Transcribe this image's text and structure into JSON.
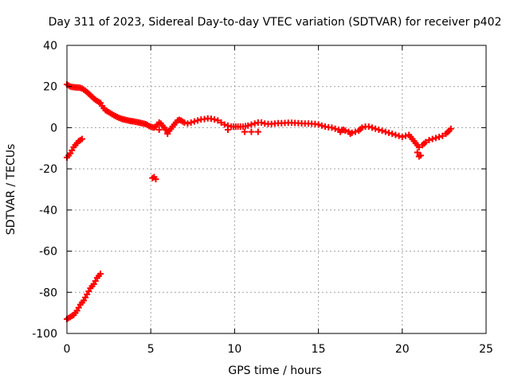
{
  "chart_data": {
    "type": "scatter",
    "title": "Day 311 of 2023, Sidereal Day-to-day VTEC variation (SDTVAR) for receiver p402",
    "xlabel": "GPS time / hours",
    "ylabel": "SDTVAR / TECUs",
    "xlim": [
      0,
      25
    ],
    "ylim": [
      -100,
      40
    ],
    "xticks": [
      0,
      5,
      10,
      15,
      20,
      25
    ],
    "yticks": [
      -100,
      -80,
      -60,
      -40,
      -20,
      0,
      20,
      40
    ],
    "grid": true,
    "marker": "plus",
    "series_color": "#ff0000",
    "series": [
      {
        "name": "main-trace",
        "points": [
          [
            0.0,
            21
          ],
          [
            0.1,
            20.5
          ],
          [
            0.2,
            20
          ],
          [
            0.3,
            19.8
          ],
          [
            0.4,
            19.7
          ],
          [
            0.5,
            19.6
          ],
          [
            0.6,
            19.5
          ],
          [
            0.7,
            19.5
          ],
          [
            0.8,
            19.3
          ],
          [
            0.9,
            19
          ],
          [
            1.0,
            18.5
          ],
          [
            1.1,
            18
          ],
          [
            1.2,
            17.3
          ],
          [
            1.3,
            16.5
          ],
          [
            1.4,
            15.8
          ],
          [
            1.5,
            15
          ],
          [
            1.6,
            14.2
          ],
          [
            1.7,
            13.5
          ],
          [
            1.8,
            13
          ],
          [
            1.9,
            12.5
          ],
          [
            2.0,
            12
          ],
          [
            2.1,
            10.5
          ],
          [
            2.2,
            9.5
          ],
          [
            2.3,
            8.5
          ],
          [
            2.4,
            8
          ],
          [
            2.5,
            7.5
          ],
          [
            2.6,
            7
          ],
          [
            2.7,
            6.5
          ],
          [
            2.8,
            6
          ],
          [
            2.9,
            5.6
          ],
          [
            3.0,
            5.2
          ],
          [
            3.1,
            4.8
          ],
          [
            3.2,
            4.5
          ],
          [
            3.3,
            4.2
          ],
          [
            3.4,
            4
          ],
          [
            3.5,
            3.8
          ],
          [
            3.6,
            3.6
          ],
          [
            3.7,
            3.4
          ],
          [
            3.8,
            3.2
          ],
          [
            3.9,
            3.1
          ],
          [
            4.0,
            3
          ],
          [
            4.1,
            2.8
          ],
          [
            4.2,
            2.7
          ],
          [
            4.3,
            2.5
          ],
          [
            4.4,
            2.3
          ],
          [
            4.5,
            2.1
          ],
          [
            4.6,
            1.9
          ],
          [
            4.7,
            1.7
          ],
          [
            4.8,
            1.3
          ],
          [
            4.9,
            0.8
          ],
          [
            5.0,
            0.5
          ],
          [
            5.1,
            0.2
          ],
          [
            5.2,
            0
          ],
          [
            5.3,
            0.5
          ],
          [
            5.4,
            1.5
          ],
          [
            5.5,
            2.5
          ],
          [
            5.6,
            2
          ],
          [
            5.7,
            1
          ],
          [
            5.8,
            0
          ],
          [
            5.9,
            -1
          ],
          [
            6.0,
            -2
          ],
          [
            6.1,
            -1.5
          ],
          [
            6.2,
            -0.5
          ],
          [
            6.3,
            0.5
          ],
          [
            6.4,
            1.5
          ],
          [
            6.5,
            2.5
          ],
          [
            6.6,
            3.5
          ],
          [
            6.7,
            3.8
          ],
          [
            6.8,
            3.5
          ],
          [
            6.9,
            3
          ],
          [
            7.0,
            2.5
          ],
          [
            7.2,
            2
          ],
          [
            7.4,
            2.5
          ],
          [
            7.6,
            3
          ],
          [
            7.8,
            3.5
          ],
          [
            8.0,
            4
          ],
          [
            8.2,
            4.2
          ],
          [
            8.4,
            4.5
          ],
          [
            8.6,
            4.3
          ],
          [
            8.8,
            4
          ],
          [
            9.0,
            3.5
          ],
          [
            9.2,
            2.5
          ],
          [
            9.4,
            1.5
          ],
          [
            9.6,
            1
          ],
          [
            9.8,
            0.5
          ],
          [
            10.2,
            0.5
          ],
          [
            10.5,
            0.5
          ],
          [
            10.8,
            1
          ],
          [
            11.0,
            1.5
          ],
          [
            11.2,
            2
          ],
          [
            11.4,
            2.5
          ],
          [
            11.6,
            2.5
          ],
          [
            11.8,
            2
          ],
          [
            12.0,
            1.8
          ],
          [
            12.2,
            1.8
          ],
          [
            12.4,
            2
          ],
          [
            12.6,
            2.2
          ],
          [
            12.8,
            2.2
          ],
          [
            13.0,
            2.3
          ],
          [
            13.2,
            2.4
          ],
          [
            13.4,
            2.4
          ],
          [
            13.6,
            2.3
          ],
          [
            13.8,
            2.2
          ],
          [
            14.0,
            2.1
          ],
          [
            14.2,
            2
          ],
          [
            14.4,
            2
          ],
          [
            14.6,
            1.9
          ],
          [
            14.8,
            1.8
          ],
          [
            15.0,
            1.5
          ],
          [
            15.2,
            1
          ],
          [
            15.4,
            0.5
          ],
          [
            15.6,
            0.2
          ],
          [
            15.8,
            0
          ],
          [
            16.0,
            -0.5
          ],
          [
            16.2,
            -1
          ],
          [
            16.4,
            -1.2
          ],
          [
            16.6,
            -1.5
          ],
          [
            16.8,
            -2
          ],
          [
            17.0,
            -2.5
          ],
          [
            17.2,
            -2
          ],
          [
            17.4,
            -1.5
          ],
          [
            17.6,
            0
          ],
          [
            17.8,
            0.5
          ],
          [
            18.0,
            0.5
          ],
          [
            18.2,
            0
          ],
          [
            18.4,
            -0.5
          ],
          [
            18.6,
            -1
          ],
          [
            18.8,
            -1.5
          ],
          [
            19.0,
            -2
          ],
          [
            19.2,
            -2.5
          ],
          [
            19.4,
            -3
          ],
          [
            19.6,
            -3.5
          ],
          [
            19.8,
            -4
          ],
          [
            20.0,
            -4.5
          ],
          [
            20.2,
            -4
          ],
          [
            20.4,
            -3.5
          ],
          [
            20.6,
            -5.5
          ],
          [
            20.8,
            -7.5
          ],
          [
            21.0,
            -9.5
          ],
          [
            21.2,
            -8.5
          ],
          [
            21.4,
            -7
          ],
          [
            21.6,
            -6
          ],
          [
            21.8,
            -5.5
          ],
          [
            22.0,
            -5
          ],
          [
            22.2,
            -4.5
          ],
          [
            22.4,
            -4
          ],
          [
            22.6,
            -3
          ],
          [
            22.8,
            -1.5
          ],
          [
            22.9,
            -0.5
          ]
        ]
      },
      {
        "name": "short-segment",
        "points": [
          [
            0.0,
            -14.5
          ],
          [
            0.1,
            -13.5
          ],
          [
            0.2,
            -12.5
          ],
          [
            0.3,
            -11
          ],
          [
            0.4,
            -9.5
          ],
          [
            0.5,
            -8.5
          ],
          [
            0.6,
            -7.5
          ],
          [
            0.7,
            -6.5
          ],
          [
            0.8,
            -6
          ],
          [
            0.9,
            -5.5
          ]
        ]
      },
      {
        "name": "isolated-cluster",
        "points": [
          [
            5.1,
            -24.5
          ],
          [
            5.2,
            -24
          ],
          [
            5.3,
            -25
          ]
        ]
      },
      {
        "name": "low-segment",
        "points": [
          [
            0.0,
            -93
          ],
          [
            0.1,
            -92.5
          ],
          [
            0.2,
            -92
          ],
          [
            0.3,
            -91.5
          ],
          [
            0.4,
            -91
          ],
          [
            0.5,
            -90
          ],
          [
            0.6,
            -89
          ],
          [
            0.7,
            -87.5
          ],
          [
            0.8,
            -86
          ],
          [
            0.9,
            -85
          ],
          [
            1.0,
            -84
          ],
          [
            1.1,
            -82.5
          ],
          [
            1.2,
            -81
          ],
          [
            1.3,
            -79.5
          ],
          [
            1.4,
            -78
          ],
          [
            1.5,
            -77
          ],
          [
            1.6,
            -76
          ],
          [
            1.7,
            -74.5
          ],
          [
            1.8,
            -73
          ],
          [
            1.9,
            -72
          ],
          [
            2.0,
            -71
          ]
        ]
      },
      {
        "name": "trace-spikes",
        "points": [
          [
            5.5,
            -1
          ],
          [
            6.0,
            -3
          ],
          [
            9.6,
            -1
          ],
          [
            10.6,
            -2
          ],
          [
            11.0,
            -2
          ],
          [
            11.4,
            -2
          ],
          [
            16.3,
            -2
          ],
          [
            16.5,
            -1
          ],
          [
            16.9,
            -3
          ],
          [
            20.9,
            -12
          ],
          [
            21.1,
            -13.5
          ],
          [
            21.0,
            -14
          ]
        ]
      }
    ]
  }
}
